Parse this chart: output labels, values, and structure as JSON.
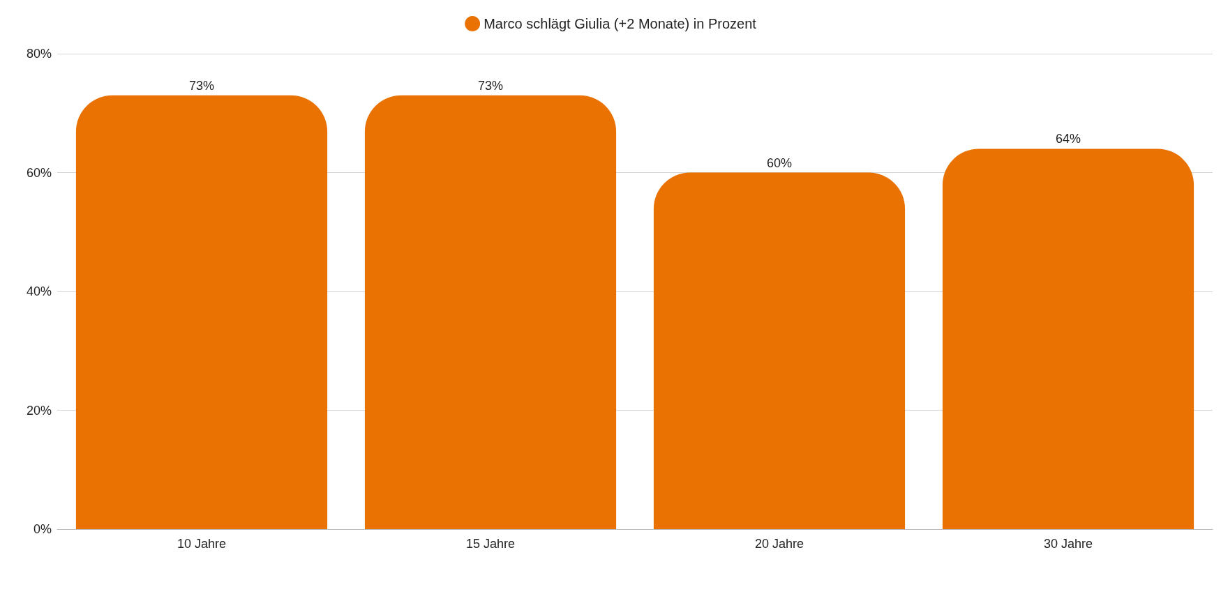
{
  "chart_data": {
    "type": "bar",
    "categories": [
      "10 Jahre",
      "15 Jahre",
      "20 Jahre",
      "30 Jahre"
    ],
    "series": [
      {
        "name": "Marco schlägt Giulia (+2 Monate) in Prozent",
        "color": "#e97203",
        "values": [
          73,
          73,
          60,
          64
        ],
        "value_labels": [
          "73%",
          "73%",
          "60%",
          "64%"
        ]
      }
    ],
    "ylim": [
      0,
      80
    ],
    "yticks": [
      {
        "value": 0,
        "label": "0%"
      },
      {
        "value": 20,
        "label": "20%"
      },
      {
        "value": 40,
        "label": "40%"
      },
      {
        "value": 60,
        "label": "60%"
      },
      {
        "value": 80,
        "label": "80%"
      }
    ],
    "grid": "y",
    "legend": "top"
  }
}
